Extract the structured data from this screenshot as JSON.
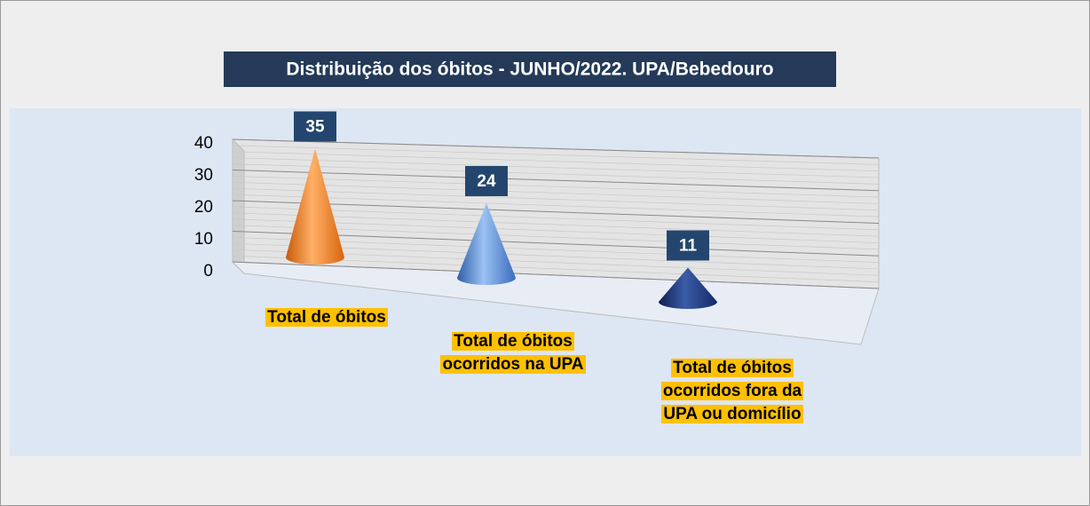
{
  "chart_data": {
    "type": "cone",
    "title": "Distribuição dos óbitos - JUNHO/2022. UPA/Bebedouro",
    "categories": [
      "Total de óbitos",
      "Total de óbitos ocorridos na UPA",
      "Total de óbitos ocorridos fora da UPA ou domicílio"
    ],
    "values": [
      35,
      24,
      11
    ],
    "colors": [
      "#f5821f",
      "#4f81d0",
      "#1a357a"
    ],
    "ylim": [
      0,
      40
    ],
    "yticks": [
      0,
      10,
      20,
      30,
      40
    ],
    "grid": true
  }
}
